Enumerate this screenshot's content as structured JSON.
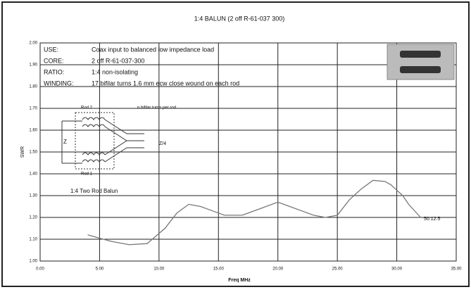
{
  "chart_data": {
    "type": "line",
    "title": "1:4 BALUN (2 off R-61-037 300)",
    "xlabel": "Freq MHz",
    "ylabel": "SWR",
    "x": [
      4,
      5,
      6,
      7.5,
      9,
      10.5,
      11.5,
      12.5,
      13.5,
      14.5,
      15.5,
      17,
      18.5,
      20,
      21,
      22,
      23,
      24,
      25,
      26,
      27,
      28,
      29,
      29.5,
      30.5,
      31,
      32
    ],
    "series": [
      {
        "color": "#777777",
        "values": [
          1.12,
          1.105,
          1.09,
          1.075,
          1.08,
          1.15,
          1.22,
          1.26,
          1.25,
          1.23,
          1.21,
          1.21,
          1.24,
          1.27,
          1.25,
          1.23,
          1.21,
          1.2,
          1.21,
          1.28,
          1.33,
          1.37,
          1.365,
          1.35,
          1.3,
          1.26,
          1.2
        ]
      }
    ],
    "xlim": [
      0,
      35
    ],
    "ylim": [
      1,
      2
    ],
    "xticks": [
      {
        "value": 0,
        "label": "0.00"
      },
      {
        "value": 5,
        "label": "5.00"
      },
      {
        "value": 10,
        "label": "10.00"
      },
      {
        "value": 15,
        "label": "15.00"
      },
      {
        "value": 20,
        "label": "20.00"
      },
      {
        "value": 25,
        "label": "25.00"
      },
      {
        "value": 30,
        "label": "30.00"
      },
      {
        "value": 35,
        "label": "35.00"
      }
    ],
    "yticks": [
      {
        "value": 1,
        "label": "1.00"
      },
      {
        "value": 1.1,
        "label": "1.10"
      },
      {
        "value": 1.2,
        "label": "1.20"
      },
      {
        "value": 1.3,
        "label": "1.30"
      },
      {
        "value": 1.4,
        "label": "1.40"
      },
      {
        "value": 1.5,
        "label": "1.50"
      },
      {
        "value": 1.6,
        "label": "1.60"
      },
      {
        "value": 1.7,
        "label": "1.70"
      },
      {
        "value": 1.8,
        "label": "1.80"
      },
      {
        "value": 1.9,
        "label": "1.90"
      },
      {
        "value": 2,
        "label": "2.00"
      }
    ],
    "grid": true,
    "annotations": [
      "USE:",
      "Coax input to balanced low impedance load",
      "CORE:",
      "2 off R-61-037-300",
      "RATIO:",
      "1:4 non-isolating",
      "WINDING:",
      "17 bifilar turns 1.6 mm ecw close wound on each rod",
      "n bifilar turns per rod",
      "Rod 2",
      "Rod 1",
      "Z",
      "Z/4",
      "1:4 Two Rod Balun",
      "50:12.5"
    ]
  }
}
